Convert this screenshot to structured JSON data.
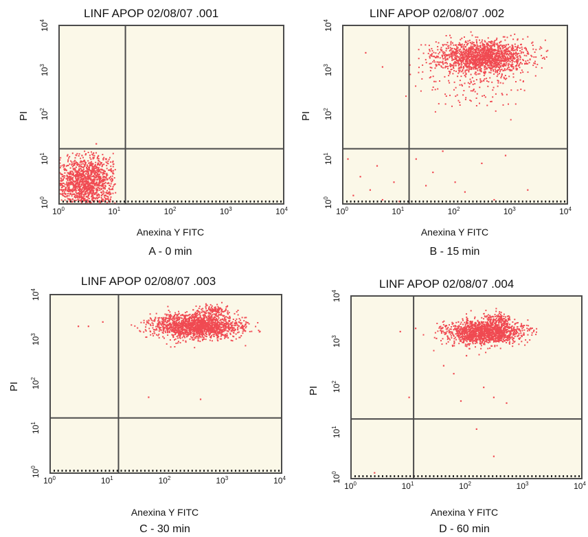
{
  "chart_data": [
    {
      "type": "scatter",
      "id": "A",
      "title": "LINF APOP 02/08/07 .001",
      "xlabel": "Anexina Y FITC",
      "ylabel": "PI",
      "caption": "A - 0 min",
      "x_scale": "log",
      "y_scale": "log",
      "xlim": [
        1,
        10000
      ],
      "ylim": [
        1,
        10000
      ],
      "x_ticks": [
        "10^0",
        "10^1",
        "10^2",
        "10^3",
        "10^4"
      ],
      "y_ticks": [
        "10^0",
        "10^1",
        "10^2",
        "10^3",
        "10^4"
      ],
      "gate": {
        "x": 15,
        "y": 17
      },
      "clusters": [
        {
          "center": [
            3,
            3
          ],
          "spread": [
            0.28,
            0.3
          ],
          "count": 1400,
          "xmin": 1,
          "xmax": 10,
          "ymin": 1,
          "ymax": 15
        }
      ],
      "outliers": [
        [
          4.5,
          22
        ],
        [
          2.5,
          12
        ]
      ]
    },
    {
      "type": "scatter",
      "id": "B",
      "title": "LINF APOP 02/08/07 .002",
      "xlabel": "Anexina Y FITC",
      "ylabel": "PI",
      "caption": "B - 15 min",
      "x_scale": "log",
      "y_scale": "log",
      "xlim": [
        1,
        10000
      ],
      "ylim": [
        1,
        10000
      ],
      "x_ticks": [
        "10^0",
        "10^1",
        "10^2",
        "10^3",
        "10^4"
      ],
      "y_ticks": [
        "10^0",
        "10^1",
        "10^2",
        "10^3",
        "10^4"
      ],
      "gate": {
        "x": 15,
        "y": 17
      },
      "clusters": [
        {
          "center": [
            300,
            2000
          ],
          "spread": [
            0.42,
            0.18
          ],
          "count": 1600,
          "xmin": 15,
          "xmax": 5000,
          "ymin": 200,
          "ymax": 8000
        },
        {
          "center": [
            200,
            600
          ],
          "spread": [
            0.45,
            0.35
          ],
          "count": 160,
          "xmin": 12,
          "xmax": 3000,
          "ymin": 30,
          "ymax": 3000
        }
      ],
      "outliers": [
        [
          2.5,
          2500
        ],
        [
          5,
          1200
        ],
        [
          2,
          4
        ],
        [
          3,
          2
        ],
        [
          1.5,
          1.5
        ],
        [
          5,
          1.2
        ],
        [
          8,
          3
        ],
        [
          20,
          10
        ],
        [
          40,
          5
        ],
        [
          100,
          3
        ],
        [
          300,
          8
        ],
        [
          500,
          1.2
        ],
        [
          800,
          12
        ],
        [
          2000,
          2
        ],
        [
          60,
          15
        ],
        [
          150,
          1.8
        ],
        [
          30,
          2.5
        ],
        [
          4,
          7
        ],
        [
          10,
          1.1
        ],
        [
          1.2,
          10
        ]
      ]
    },
    {
      "type": "scatter",
      "id": "C",
      "title": "LINF APOP 02/08/07 .003",
      "xlabel": "Anexina Y FITC",
      "ylabel": "PI",
      "caption": "C - 30 min",
      "x_scale": "log",
      "y_scale": "log",
      "xlim": [
        1,
        10000
      ],
      "ylim": [
        1,
        10000
      ],
      "x_ticks": [
        "10^0",
        "10^1",
        "10^2",
        "10^3",
        "10^4"
      ],
      "y_ticks": [
        "10^0",
        "10^1",
        "10^2",
        "10^3",
        "10^4"
      ],
      "gate": {
        "x": 15,
        "y": 17
      },
      "clusters": [
        {
          "center": [
            350,
            2000
          ],
          "spread": [
            0.38,
            0.14
          ],
          "count": 1700,
          "xmin": 15,
          "xmax": 5000,
          "ymin": 600,
          "ymax": 7000
        },
        {
          "center": [
            700,
            4500
          ],
          "spread": [
            0.12,
            0.08
          ],
          "count": 120,
          "xmin": 300,
          "xmax": 1500,
          "ymin": 2500,
          "ymax": 7000
        }
      ],
      "outliers": [
        [
          3,
          2000
        ],
        [
          4.5,
          2000
        ],
        [
          8,
          2500
        ],
        [
          50,
          50
        ],
        [
          400,
          45
        ],
        [
          1200,
          1100
        ]
      ]
    },
    {
      "type": "scatter",
      "id": "D",
      "title": "LINF APOP 02/08/07 .004",
      "xlabel": "Anexina Y FITC",
      "ylabel": "PI",
      "caption": "D - 60 min",
      "x_scale": "log",
      "y_scale": "log",
      "xlim": [
        1,
        10000
      ],
      "ylim": [
        1,
        10000
      ],
      "x_ticks": [
        "10^0",
        "10^1",
        "10^2",
        "10^3",
        "10^4"
      ],
      "y_ticks": [
        "10^0",
        "10^1",
        "10^2",
        "10^3",
        "10^4"
      ],
      "gate": {
        "x": 12,
        "y": 20
      },
      "clusters": [
        {
          "center": [
            200,
            1600
          ],
          "spread": [
            0.33,
            0.13
          ],
          "count": 1400,
          "xmin": 12,
          "xmax": 4000,
          "ymin": 500,
          "ymax": 5000
        },
        {
          "center": [
            350,
            3000
          ],
          "spread": [
            0.15,
            0.1
          ],
          "count": 150,
          "xmin": 100,
          "xmax": 1500,
          "ymin": 1500,
          "ymax": 6000
        }
      ],
      "outliers": [
        [
          7,
          1700
        ],
        [
          13,
          2000
        ],
        [
          30,
          1200
        ],
        [
          40,
          300
        ],
        [
          60,
          200
        ],
        [
          100,
          500
        ],
        [
          200,
          100
        ],
        [
          300,
          60
        ],
        [
          150,
          12
        ],
        [
          300,
          3
        ],
        [
          10,
          60
        ],
        [
          2.5,
          1.3
        ],
        [
          12,
          1.1
        ],
        [
          500,
          45
        ],
        [
          80,
          50
        ]
      ]
    }
  ],
  "colors": {
    "dot": "#f04a52",
    "background": "#fbf8e8",
    "frame": "#4a4a4a",
    "gate": "#4a4a4a"
  }
}
